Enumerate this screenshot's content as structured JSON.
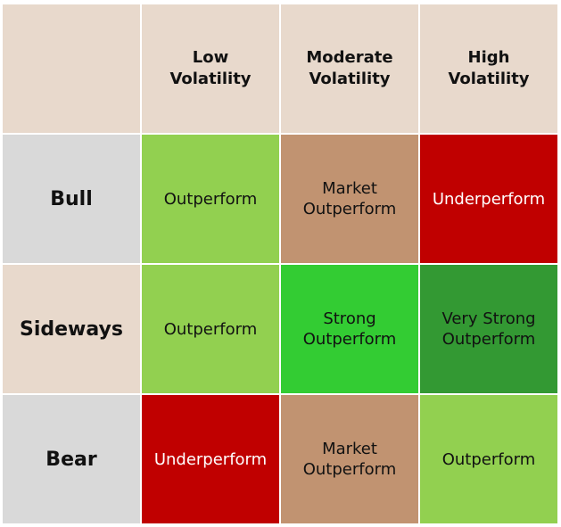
{
  "header_color": "#e8d9cc",
  "columns": [
    [
      "Low",
      "Volatility"
    ],
    [
      "Moderate",
      "Volatility"
    ],
    [
      "High",
      "Volatility"
    ]
  ],
  "rows": [
    {
      "label": "Bull",
      "color": "#d9d9d9",
      "cells": [
        {
          "text": [
            "Outperform"
          ],
          "color": "#92d050"
        },
        {
          "text": [
            "Market",
            "Outperform"
          ],
          "color": "#c19371"
        },
        {
          "text": [
            "Underperform"
          ],
          "color": "#c00000",
          "text_color": "#ffffff"
        }
      ]
    },
    {
      "label": "Sideways",
      "color": "#e8d9cc",
      "cells": [
        {
          "text": [
            "Outperform"
          ],
          "color": "#92d050"
        },
        {
          "text": [
            "Strong",
            "Outperform"
          ],
          "color": "#33cc33"
        },
        {
          "text": [
            "Very Strong",
            "Outperform"
          ],
          "color": "#339933"
        }
      ]
    },
    {
      "label": "Bear",
      "color": "#d9d9d9",
      "cells": [
        {
          "text": [
            "Underperform"
          ],
          "color": "#c00000",
          "text_color": "#ffffff"
        },
        {
          "text": [
            "Market",
            "Outperform"
          ],
          "color": "#c19371"
        },
        {
          "text": [
            "Outperform"
          ],
          "color": "#92d050"
        }
      ]
    }
  ]
}
